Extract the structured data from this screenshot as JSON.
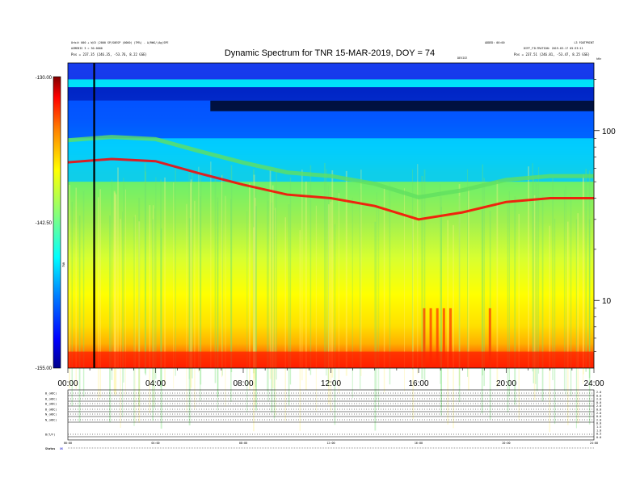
{
  "header": {
    "title": "Dynamic Spectrum for TNR 15-MAR-2019, DOY = 74",
    "left_line1": "Orbit 000 + W/D (2000 SP/G0ESP (0000) (TM%) - A/RWG/(Ag)SPE",
    "left_line2": "ASMEBIS 3 = 30.0000",
    "left_line3": "Pos = 237.35 (246.35, -53.76, 8.22 GSE)",
    "right_line1": "ADDED: 00:00",
    "right_line2": "DIFF_FILTRATION: 2019-03-17 05:33:11",
    "right_line3": "Pos = 237.51 (246.81, -53.47, 8.25 GSE)",
    "right_small": "L3 FOOTPRINT",
    "center_small": "DEVICE",
    "corner_small": "kHz"
  },
  "colors": {
    "colorbar": [
      "#00008b",
      "#0000ff",
      "#0080ff",
      "#00ffff",
      "#80ff80",
      "#ffff00",
      "#ff8000",
      "#ff0000",
      "#800000"
    ],
    "marker_line": "#000000"
  },
  "chart_data": {
    "type": "heatmap",
    "title": "Dynamic Spectrum for TNR 15-MAR-2019, DOY = 74",
    "x_unit": "UT hours",
    "x_ticks": [
      "00:00",
      "04:00",
      "08:00",
      "12:00",
      "16:00",
      "20:00",
      "24:00"
    ],
    "xlim": [
      0,
      24
    ],
    "y_unit": "kHz",
    "y_scale": "log",
    "ylim": [
      4,
      250
    ],
    "y_ticks": [
      "100",
      "10"
    ],
    "colorbar": {
      "label": "TNR",
      "ticks": [
        "-130.00",
        "-142.50",
        "-155.00"
      ],
      "range": [
        -155.0,
        -130.0
      ]
    },
    "marker_x_hours": 1.2,
    "bands": [
      {
        "freq_top_khz": 250,
        "freq_bottom_khz": 200,
        "level": -131
      },
      {
        "freq_top_khz": 200,
        "freq_bottom_khz": 180,
        "level": -137
      },
      {
        "freq_top_khz": 180,
        "freq_bottom_khz": 150,
        "level": -133
      },
      {
        "freq_top_khz": 150,
        "freq_bottom_khz": 90,
        "level": -136
      },
      {
        "freq_top_khz": 90,
        "freq_bottom_khz": 50,
        "level": -138
      }
    ],
    "plasma_line": [
      {
        "t": 0,
        "khz": 65
      },
      {
        "t": 2,
        "khz": 68
      },
      {
        "t": 4,
        "khz": 66
      },
      {
        "t": 6,
        "khz": 56
      },
      {
        "t": 8,
        "khz": 48
      },
      {
        "t": 10,
        "khz": 42
      },
      {
        "t": 12,
        "khz": 40
      },
      {
        "t": 14,
        "khz": 36
      },
      {
        "t": 16,
        "khz": 30
      },
      {
        "t": 18,
        "khz": 33
      },
      {
        "t": 20,
        "khz": 38
      },
      {
        "t": 22,
        "khz": 40
      },
      {
        "t": 24,
        "khz": 40
      }
    ]
  },
  "lower_panel": {
    "row_labels": [
      "B_(ADC)",
      "B_(ADC)",
      "B_(ADC)",
      "B_(ADC)",
      "N_(ADC)",
      "N_(ADC)",
      "B(T/F)"
    ],
    "right_labels": [
      "2.0",
      "0.0",
      "2.0",
      "0.0",
      "2.0",
      "0.0",
      "2.0",
      "0.0",
      "2.0",
      "0.0",
      "1.5",
      "1.0",
      "0.5",
      "0.0"
    ],
    "bottom_ticks": [
      "00:00",
      "04:00",
      "08:00",
      "12:00",
      "16:00",
      "20:00",
      "24:00"
    ],
    "status_label": "Status",
    "status_value": "OK"
  }
}
